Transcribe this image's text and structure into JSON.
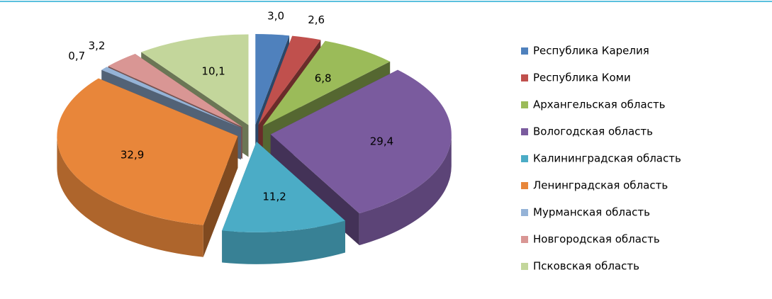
{
  "chart_data": {
    "type": "pie",
    "style": "3d-exploded",
    "categories": [
      "Республика Карелия",
      "Республика Коми",
      "Архангельская область",
      "Вологодская область",
      "Калининградская область",
      "Ленинградская область",
      "Мурманская область",
      "Новгородская область",
      "Псковская область"
    ],
    "values": [
      3.0,
      2.6,
      6.8,
      29.4,
      11.2,
      32.9,
      0.7,
      3.2,
      10.1
    ],
    "value_labels": [
      "3,0",
      "2,6",
      "6,8",
      "29,4",
      "11,2",
      "32,9",
      "0,7",
      "3,2",
      "10,1"
    ],
    "colors": [
      "#4f81bd",
      "#c0504d",
      "#9bbb59",
      "#7a5b9e",
      "#4bacc6",
      "#e8863a",
      "#95b3d7",
      "#d99694",
      "#c3d69b"
    ],
    "legend": "right"
  }
}
